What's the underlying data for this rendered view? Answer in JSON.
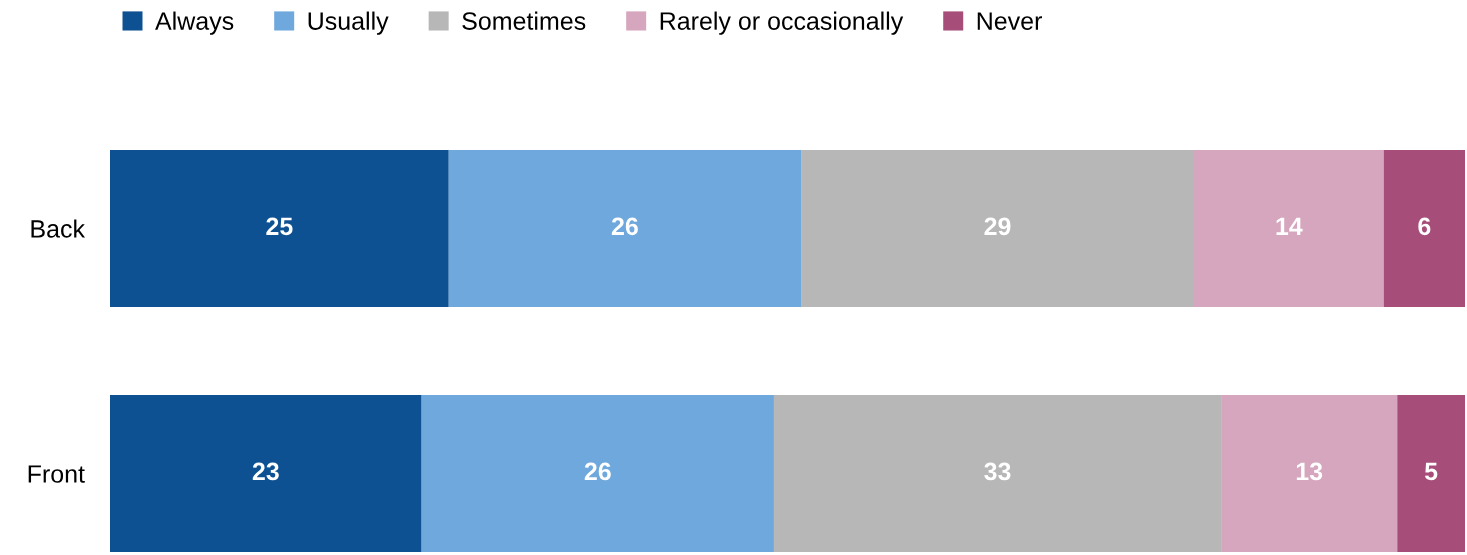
{
  "chart_data": {
    "type": "bar",
    "orientation": "horizontal",
    "stacked": true,
    "categories": [
      "Back",
      "Front"
    ],
    "series": [
      {
        "name": "Always",
        "color": "#0d5192",
        "values": [
          25,
          23
        ]
      },
      {
        "name": "Usually",
        "color": "#6fa8dc",
        "values": [
          26,
          26
        ]
      },
      {
        "name": "Sometimes",
        "color": "#b7b7b7",
        "values": [
          29,
          33
        ]
      },
      {
        "name": "Rarely or occasionally",
        "color": "#d5a6bd",
        "values": [
          14,
          13
        ]
      },
      {
        "name": "Never",
        "color": "#a64d79",
        "values": [
          6,
          5
        ]
      }
    ],
    "xlim": [
      0,
      100
    ],
    "data_labels": true,
    "legend": "top left",
    "tick_labels": "y",
    "grid": false
  }
}
